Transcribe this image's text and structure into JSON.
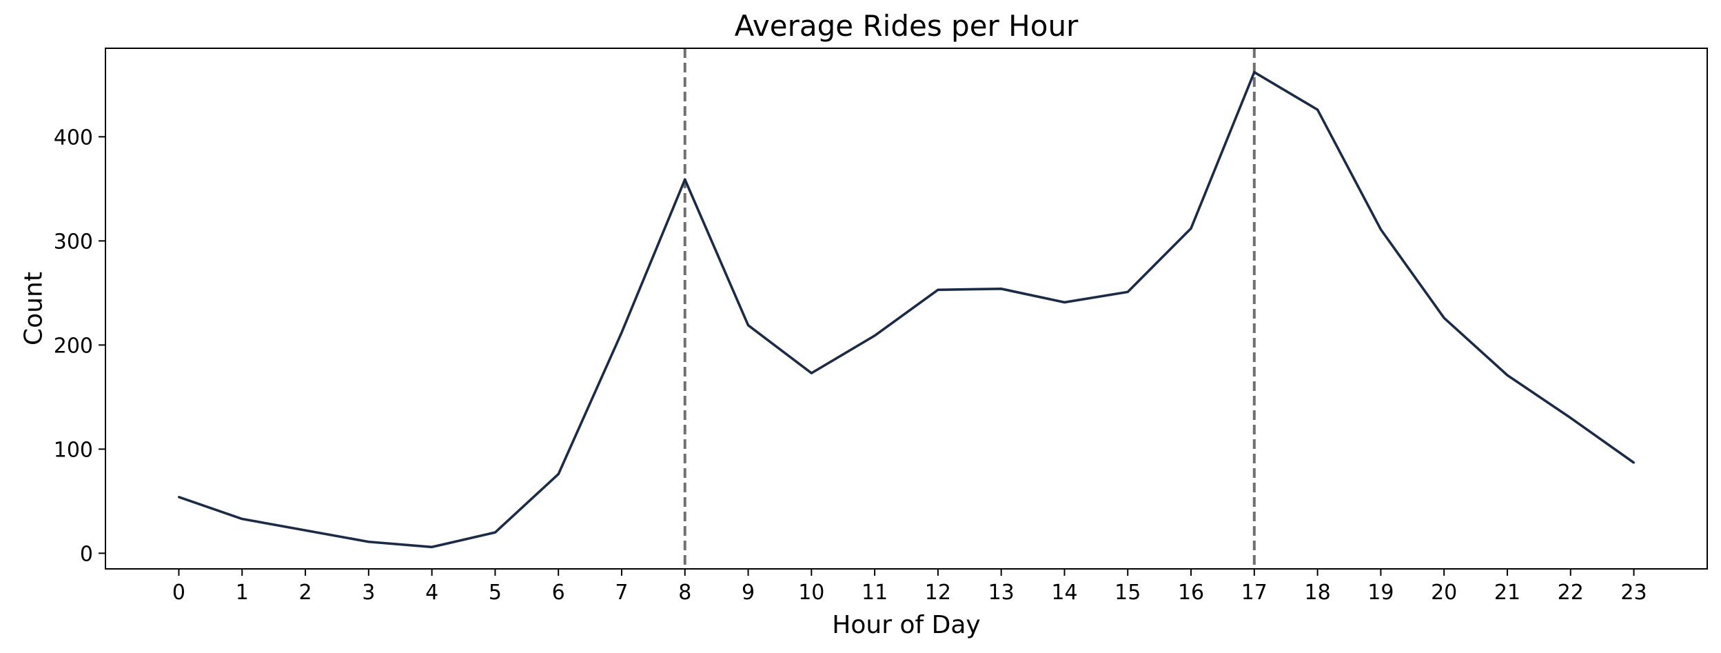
{
  "chart_data": {
    "type": "line",
    "title": "Average Rides per Hour",
    "xlabel": "Hour of Day",
    "ylabel": "Count",
    "x": [
      0,
      1,
      2,
      3,
      4,
      5,
      6,
      7,
      8,
      9,
      10,
      11,
      12,
      13,
      14,
      15,
      16,
      17,
      18,
      19,
      20,
      21,
      22,
      23
    ],
    "series": [
      {
        "values": [
          54,
          33,
          22,
          11,
          6,
          20,
          76,
          212,
          359,
          219,
          173,
          209,
          253,
          254,
          241,
          251,
          312,
          462,
          426,
          311,
          226,
          171,
          130,
          87
        ],
        "color": "#1b2a47"
      }
    ],
    "reference_lines": [
      {
        "x": 8,
        "style": "dashed",
        "color": "#707070"
      },
      {
        "x": 17,
        "style": "dashed",
        "color": "#707070"
      }
    ],
    "xlim": [
      -1.16,
      24.16
    ],
    "ylim": [
      -15,
      485
    ],
    "yticks": [
      0,
      100,
      200,
      300,
      400
    ],
    "grid": false,
    "legend": false
  }
}
